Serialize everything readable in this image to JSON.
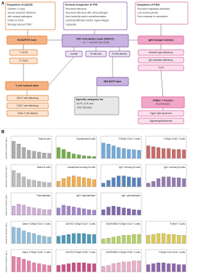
{
  "panel_a": {
    "label": "A",
    "boxes": [
      {
        "title": "Suspicion of (S)CID",
        "lines": [
          "Children <1 year",
          "Severe recurrent infections",
          "with unusual pathogens",
          "Failure to thrive",
          "Strongly reduced TREC"
        ]
      },
      {
        "title": "General suspicion of PID",
        "lines": [
          "Recurrent infections",
          "Recurrent infections with same pathogen",
          "Auto-immunity and/or autoinflammation",
          "Lymphoproliferation and/or organomegaly",
          "Cytopenia"
        ]
      },
      {
        "title": "Suspicion of PAD",
        "lines": [
          "Recurrent respiratory infections",
          "Low serum Ig levels",
          "Poor response to vaccination"
        ]
      },
      {
        "title": "SCID/RTE tube",
        "lines": []
      },
      {
        "title": "PID Orientation tube (PIDOT)",
        "lines": [
          "+ B-, T- and NK cell counts"
        ]
      },
      {
        "title": "IgH-isotype tube(s)",
        "lines": []
      },
      {
        "title": "T- SCID",
        "lines": []
      },
      {
        "title": "T+ SCID",
        "lines": []
      },
      {
        "title": "T-cell subset tube",
        "lines": []
      },
      {
        "title": "CD4 T-cell deficiency",
        "lines": []
      },
      {
        "title": "CD8 T-cell deficiency",
        "lines": []
      },
      {
        "title": "Other T-cell defects",
        "lines": []
      },
      {
        "title": "normal",
        "lines": []
      },
      {
        "title": "B cells low",
        "lines": []
      },
      {
        "title": "B cells absent",
        "lines": []
      },
      {
        "title": "BM-BCP tube",
        "lines": []
      },
      {
        "title": "Specific analyses for",
        "lines": [
          "ALPS, XLP, and",
          "other diseases"
        ]
      },
      {
        "title": "PNBC + PosGC",
        "lines": [
          "B-cell tube(s)"
        ]
      },
      {
        "title": "selective IgA deficiency",
        "lines": []
      },
      {
        "title": "IgG subclass deficiency",
        "lines": []
      },
      {
        "title": "CVID",
        "lines": []
      },
      {
        "title": "Hyper IgM syndrome",
        "lines": []
      },
      {
        "title": "Agammaglobulinemia",
        "lines": []
      }
    ]
  },
  "panel_b": {
    "label": "B",
    "y_axis_label": "absolute numbers (/µL)",
    "panels": [
      {
        "title": "Total B-cells",
        "color": "#9e9e9e",
        "values": [
          95,
          80,
          60,
          45,
          40,
          35,
          30,
          28
        ]
      },
      {
        "title": "Transitional B-cells",
        "color": "#5aa02c",
        "values": [
          60,
          50,
          35,
          25,
          20,
          15,
          12,
          10
        ]
      },
      {
        "title": "TCRαβ+CD4+ T-cells",
        "color": "#5b9bd5",
        "values": [
          85,
          80,
          70,
          60,
          55,
          50,
          48,
          45
        ]
      },
      {
        "title": "TCRαβ+CD8+ T-cells",
        "color": "#c0504d",
        "values": [
          70,
          65,
          60,
          55,
          55,
          50,
          50,
          48
        ]
      },
      {
        "title": "Naive B-cells",
        "color": "#b0b0b0",
        "values": [
          90,
          75,
          55,
          40,
          35,
          30,
          25,
          22
        ]
      },
      {
        "title": "Unswitched memory B-cells",
        "color": "#f0a030",
        "values": [
          30,
          45,
          55,
          60,
          55,
          50,
          45,
          40
        ]
      },
      {
        "title": "IgG+ memory B-cells",
        "color": "#3a6fb0",
        "values": [
          20,
          35,
          50,
          60,
          60,
          55,
          50,
          50
        ]
      },
      {
        "title": "IgA+ memory B-cells",
        "color": "#8064a2",
        "values": [
          20,
          30,
          45,
          55,
          55,
          50,
          50,
          45
        ]
      },
      {
        "title": "Plasmablasts",
        "color": "#c8a0d0",
        "values": [
          50,
          60,
          55,
          45,
          40,
          35,
          30,
          30
        ]
      },
      {
        "title": "IgG+ plasmablasts",
        "color": "#9070c0",
        "values": [
          40,
          55,
          50,
          45,
          40,
          35,
          30,
          28
        ]
      },
      {
        "title": "IgA+ plasmablasts",
        "color": "#6a4fa0",
        "values": [
          30,
          45,
          50,
          45,
          40,
          35,
          30,
          28
        ]
      },
      {
        "title": "Naive TCRαβ+CD4+ T-cells",
        "color": "#7fb3d5",
        "values": [
          90,
          85,
          70,
          60,
          55,
          45,
          40,
          35
        ]
      },
      {
        "title": "CM/TM TCRαβ+CD4+ T-cells",
        "color": "#2e86ab",
        "values": [
          40,
          45,
          50,
          55,
          55,
          55,
          50,
          50
        ]
      },
      {
        "title": "EM/TEMRA TCRαβ+CD4+ T-cells",
        "color": "#a9c94c",
        "values": [
          25,
          30,
          35,
          40,
          45,
          45,
          50,
          50
        ]
      },
      {
        "title": "TCRγδ+ T-cells",
        "color": "#d4c23a",
        "values": [
          45,
          50,
          55,
          55,
          50,
          50,
          45,
          45
        ]
      },
      {
        "title": "Naive TCRαβ+CD8+ T-cells",
        "color": "#e06a9a",
        "values": [
          85,
          80,
          70,
          60,
          50,
          45,
          40,
          35
        ]
      },
      {
        "title": "CM/TM TCRαβ+CD8+ T-cells",
        "color": "#c03070",
        "values": [
          35,
          40,
          45,
          50,
          50,
          50,
          45,
          45
        ]
      },
      {
        "title": "EM/TEMRA TCRαβ+CD8+ T-cells",
        "color": "#e6a0c0",
        "values": [
          30,
          35,
          45,
          50,
          55,
          55,
          60,
          60
        ]
      },
      {
        "title": "TCRαβ+CD4-CD8- T-cells",
        "color": "#7a4a9a",
        "values": [
          40,
          45,
          50,
          50,
          45,
          45,
          40,
          40
        ]
      }
    ]
  }
}
